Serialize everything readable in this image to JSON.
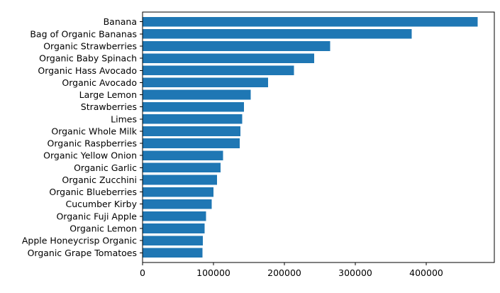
{
  "chart_data": {
    "type": "bar",
    "orientation": "horizontal",
    "title": "",
    "xlabel": "",
    "ylabel": "",
    "grid": false,
    "bar_color": "#1f77b4",
    "categories": [
      "Banana",
      "Bag of Organic Bananas",
      "Organic Strawberries",
      "Organic Baby Spinach",
      "Organic Hass Avocado",
      "Organic Avocado",
      "Large Lemon",
      "Strawberries",
      "Limes",
      "Organic Whole Milk",
      "Organic Raspberries",
      "Organic Yellow Onion",
      "Organic Garlic",
      "Organic Zucchini",
      "Organic Blueberries",
      "Cucumber Kirby",
      "Organic Fuji Apple",
      "Organic Lemon",
      "Apple Honeycrisp Organic",
      "Organic Grape Tomatoes"
    ],
    "values": [
      472565,
      379450,
      264683,
      241921,
      213584,
      176815,
      152657,
      142951,
      140627,
      137905,
      137057,
      113426,
      109778,
      105130,
      100060,
      97315,
      89632,
      87746,
      85020,
      84255
    ],
    "xlim": [
      0,
      496000
    ],
    "xticks": [
      0,
      100000,
      200000,
      300000,
      400000
    ],
    "xtick_labels": [
      "0",
      "100000",
      "200000",
      "300000",
      "400000"
    ]
  }
}
